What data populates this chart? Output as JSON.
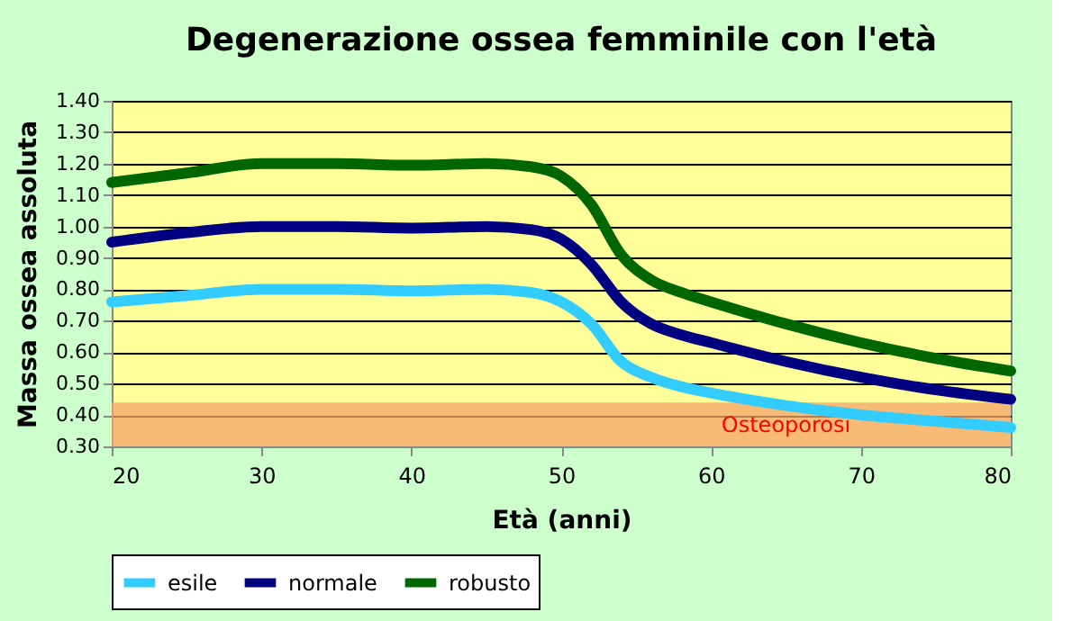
{
  "chart_data": {
    "type": "line",
    "title": "Degenerazione ossea femminile con l'età",
    "xlabel": "Età (anni)",
    "ylabel": "Massa ossea assoluta",
    "x": [
      20,
      25,
      30,
      35,
      40,
      45,
      48,
      50,
      52,
      54,
      56,
      58,
      60,
      65,
      70,
      75,
      80
    ],
    "series": [
      {
        "name": "esile",
        "color": "#33ccff",
        "values": [
          0.76,
          0.78,
          0.8,
          0.8,
          0.795,
          0.8,
          0.79,
          0.76,
          0.69,
          0.57,
          0.52,
          0.49,
          0.47,
          0.43,
          0.4,
          0.38,
          0.36
        ]
      },
      {
        "name": "normale",
        "color": "#000080",
        "values": [
          0.95,
          0.98,
          1.0,
          1.0,
          0.995,
          1.0,
          0.99,
          0.96,
          0.88,
          0.76,
          0.69,
          0.655,
          0.63,
          0.57,
          0.52,
          0.48,
          0.45
        ]
      },
      {
        "name": "robusto",
        "color": "#006600",
        "values": [
          1.14,
          1.17,
          1.2,
          1.2,
          1.195,
          1.2,
          1.19,
          1.16,
          1.07,
          0.91,
          0.83,
          0.79,
          0.76,
          0.69,
          0.63,
          0.58,
          0.54
        ]
      }
    ],
    "xlim": [
      20,
      80
    ],
    "xticks": [
      20,
      30,
      40,
      50,
      60,
      70,
      80
    ],
    "ylim": [
      0.3,
      1.4
    ],
    "yticks": [
      {
        "value": 0.3,
        "label": "0.30"
      },
      {
        "value": 0.4,
        "label": "0.40"
      },
      {
        "value": 0.5,
        "label": "0.50"
      },
      {
        "value": 0.6,
        "label": "0.60"
      },
      {
        "value": 0.7,
        "label": "0.70"
      },
      {
        "value": 0.8,
        "label": "0.80"
      },
      {
        "value": 0.9,
        "label": "0.90"
      },
      {
        "value": 1.0,
        "label": "1.00"
      },
      {
        "value": 1.1,
        "label": "1.10"
      },
      {
        "value": 1.2,
        "label": "1.20"
      },
      {
        "value": 1.3,
        "label": "1.30"
      },
      {
        "value": 1.4,
        "label": "1.40"
      }
    ],
    "bands": [
      {
        "axis": "y",
        "from": 0.3,
        "to": 0.44,
        "label": "Osteoporosi",
        "color": "#f4a46a"
      }
    ],
    "grid": "y",
    "legend": "bottom",
    "marker": "none",
    "line_style": "solid"
  }
}
